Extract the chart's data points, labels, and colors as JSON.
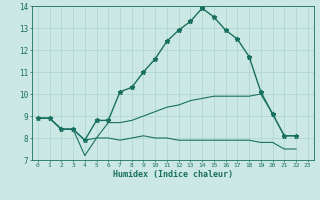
{
  "title": "",
  "xlabel": "Humidex (Indice chaleur)",
  "bg_color": "#cce8e4",
  "grid_color": "#aad4cc",
  "line_color": "#1a7060",
  "xlim": [
    -0.5,
    23.5
  ],
  "ylim": [
    7,
    14
  ],
  "xticks": [
    0,
    1,
    2,
    3,
    4,
    5,
    6,
    7,
    8,
    9,
    10,
    11,
    12,
    13,
    14,
    15,
    16,
    17,
    18,
    19,
    20,
    21,
    22,
    23
  ],
  "yticks": [
    7,
    8,
    9,
    10,
    11,
    12,
    13,
    14
  ],
  "series": [
    {
      "x": [
        0,
        1,
        2,
        3,
        4,
        5,
        6,
        7,
        8,
        9,
        10,
        11,
        12,
        13,
        14,
        15,
        16,
        17,
        18,
        19,
        20,
        21,
        22
      ],
      "y": [
        8.9,
        8.9,
        8.4,
        8.4,
        7.9,
        8.8,
        8.8,
        10.1,
        10.3,
        11.0,
        11.6,
        12.4,
        12.9,
        13.3,
        13.9,
        13.5,
        12.9,
        12.5,
        11.7,
        10.1,
        9.1,
        8.1,
        8.1
      ],
      "marker": true,
      "lw": 1.0
    },
    {
      "x": [
        0,
        1,
        2,
        3,
        4,
        5,
        6,
        7,
        8,
        9,
        10,
        11,
        12,
        13,
        14,
        15,
        16,
        17,
        18,
        19,
        20,
        21,
        22
      ],
      "y": [
        8.9,
        8.9,
        8.4,
        8.4,
        7.2,
        8.0,
        8.7,
        8.7,
        8.8,
        9.0,
        9.2,
        9.4,
        9.5,
        9.7,
        9.8,
        9.9,
        9.9,
        9.9,
        9.9,
        10.0,
        9.1,
        8.1,
        8.1
      ],
      "marker": false,
      "lw": 0.8
    },
    {
      "x": [
        0,
        1,
        2,
        3,
        4,
        5,
        6,
        7,
        8,
        9,
        10,
        11,
        12,
        13,
        14,
        15,
        16,
        17,
        18,
        19,
        20,
        21,
        22
      ],
      "y": [
        8.9,
        8.9,
        8.4,
        8.4,
        7.9,
        8.0,
        8.0,
        7.9,
        8.0,
        8.1,
        8.0,
        8.0,
        7.9,
        7.9,
        7.9,
        7.9,
        7.9,
        7.9,
        7.9,
        7.8,
        7.8,
        7.5,
        7.5
      ],
      "marker": false,
      "lw": 0.8
    }
  ]
}
